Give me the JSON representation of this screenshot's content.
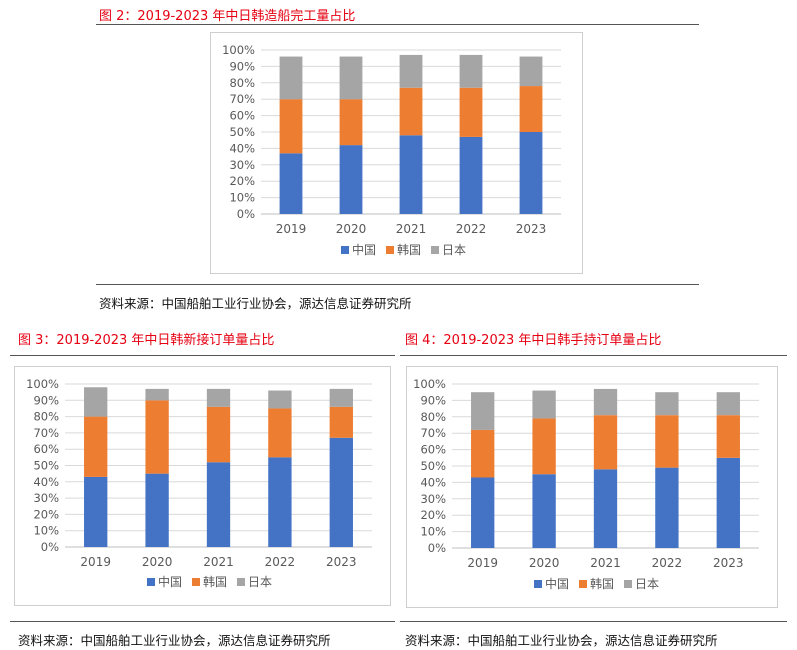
{
  "colors": {
    "china": "#4472c4",
    "korea": "#ed7d31",
    "japan": "#a5a5a5",
    "title": "#e60012"
  },
  "fig2": {
    "title": "图 2：2019-2023 年中日韩造船完工量占比",
    "source": "资料来源：中国船舶工业行业协会，源达信息证券研究所"
  },
  "fig3": {
    "title": "图 3：2019-2023 年中日韩新接订单量占比",
    "source": "资料来源：中国船舶工业行业协会，源达信息证券研究所"
  },
  "fig4": {
    "title": "图 4：2019-2023 年中日韩手持订单量占比",
    "source": "资料来源：中国船舶工业行业协会，源达信息证券研究所"
  },
  "chart_data": [
    {
      "type": "bar",
      "stacked": true,
      "categories": [
        "2019",
        "2020",
        "2021",
        "2022",
        "2023"
      ],
      "series": [
        {
          "name": "中国",
          "values": [
            37,
            42,
            48,
            47,
            50
          ]
        },
        {
          "name": "韩国",
          "values": [
            33,
            28,
            29,
            30,
            28
          ]
        },
        {
          "name": "日本",
          "values": [
            26,
            26,
            20,
            20,
            18
          ]
        }
      ],
      "ylim": [
        0,
        100
      ],
      "yticks": [
        "0%",
        "10%",
        "20%",
        "30%",
        "40%",
        "50%",
        "60%",
        "70%",
        "80%",
        "90%",
        "100%"
      ],
      "legend": "bottom",
      "grid": true
    },
    {
      "type": "bar",
      "stacked": true,
      "categories": [
        "2019",
        "2020",
        "2021",
        "2022",
        "2023"
      ],
      "series": [
        {
          "name": "中国",
          "values": [
            43,
            45,
            52,
            55,
            67
          ]
        },
        {
          "name": "韩国",
          "values": [
            37,
            45,
            34,
            30,
            19
          ]
        },
        {
          "name": "日本",
          "values": [
            18,
            7,
            11,
            11,
            11
          ]
        }
      ],
      "ylim": [
        0,
        100
      ],
      "yticks": [
        "0%",
        "10%",
        "20%",
        "30%",
        "40%",
        "50%",
        "60%",
        "70%",
        "80%",
        "90%",
        "100%"
      ],
      "legend": "bottom",
      "grid": true
    },
    {
      "type": "bar",
      "stacked": true,
      "categories": [
        "2019",
        "2020",
        "2021",
        "2022",
        "2023"
      ],
      "series": [
        {
          "name": "中国",
          "values": [
            43,
            45,
            48,
            49,
            55
          ]
        },
        {
          "name": "韩国",
          "values": [
            29,
            34,
            33,
            32,
            26
          ]
        },
        {
          "name": "日本",
          "values": [
            23,
            17,
            16,
            14,
            14
          ]
        }
      ],
      "ylim": [
        0,
        100
      ],
      "yticks": [
        "0%",
        "10%",
        "20%",
        "30%",
        "40%",
        "50%",
        "60%",
        "70%",
        "80%",
        "90%",
        "100%"
      ],
      "legend": "bottom",
      "grid": true
    }
  ]
}
